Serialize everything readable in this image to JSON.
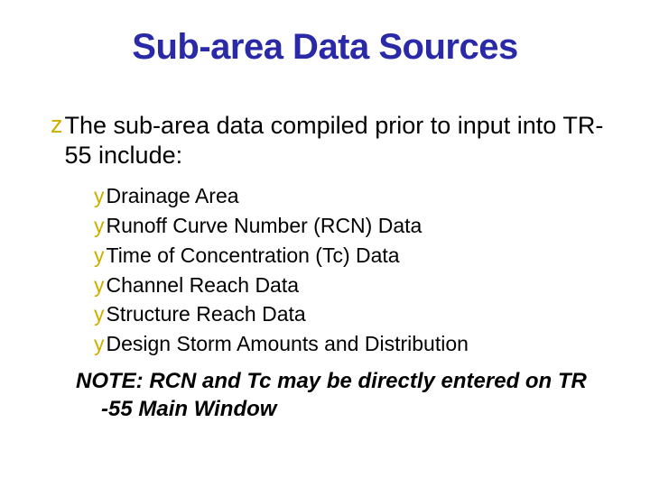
{
  "colors": {
    "title": "#2a2aa8",
    "body": "#000000",
    "bullet_lvl1": "#ccb000",
    "bullet_lvl2": "#ccb000",
    "background": "#ffffff"
  },
  "typography": {
    "title_fontsize": 40,
    "title_weight": 900,
    "lvl1_fontsize": 27,
    "lvl2_fontsize": 23,
    "note_fontsize": 24,
    "bullet_lvl1_fontsize": 27,
    "bullet_lvl2_fontsize": 23
  },
  "bullets": {
    "lvl1_glyph": "z",
    "lvl2_glyph": "y"
  },
  "title": "Sub-area Data Sources",
  "lvl1_text": "The sub-area data compiled prior to input into TR-55 include:",
  "lvl2_items": [
    "Drainage Area",
    "Runoff Curve Number (RCN)  Data",
    "Time of Concentration (Tc)  Data",
    "Channel Reach Data",
    "Structure Reach Data",
    "Design Storm Amounts and Distribution"
  ],
  "note_line1": "NOTE: RCN and Tc may be directly entered on TR",
  "note_line2": "-55 Main Window"
}
